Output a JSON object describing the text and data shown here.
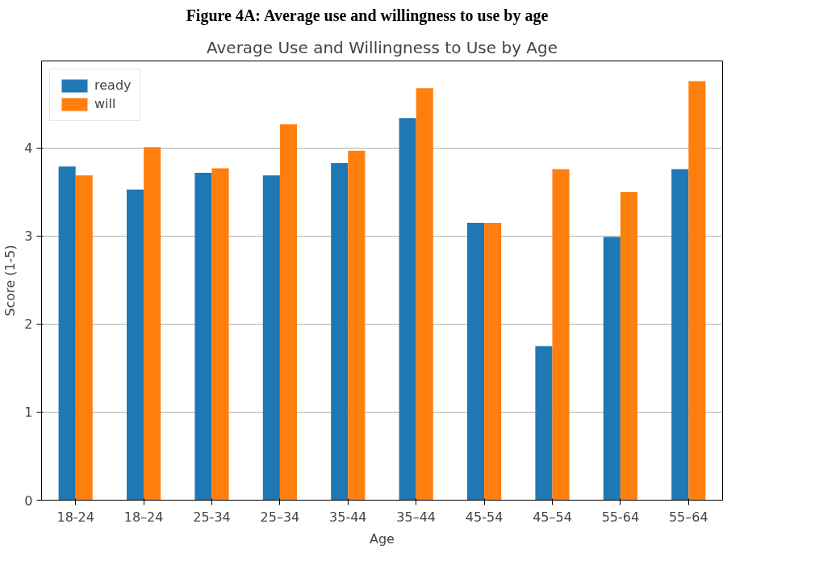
{
  "chart_data": {
    "type": "bar",
    "title": "Average Use and Willingness to Use by Age",
    "xlabel": "Age",
    "ylabel": "Score (1-5)",
    "annotations": [
      "Figure 4A: Average use and willingness to use by age"
    ],
    "categories": [
      "18-24",
      "18–24",
      "25-34",
      "25–34",
      "35-44",
      "35–44",
      "45-54",
      "45–54",
      "55-64",
      "55–64"
    ],
    "series": [
      {
        "name": "ready",
        "color": "#1f77b4",
        "values": [
          3.79,
          3.53,
          3.72,
          3.69,
          3.83,
          4.34,
          3.15,
          1.75,
          2.99,
          3.76
        ]
      },
      {
        "name": "will",
        "color": "#ff7f0e",
        "values": [
          3.69,
          4.01,
          3.77,
          4.27,
          3.97,
          4.68,
          3.15,
          3.76,
          3.5,
          4.76
        ]
      }
    ],
    "ylim": [
      0,
      4.99
    ],
    "yticks": [
      0,
      1,
      2,
      3,
      4
    ],
    "grid": "y",
    "legend": "top left"
  }
}
